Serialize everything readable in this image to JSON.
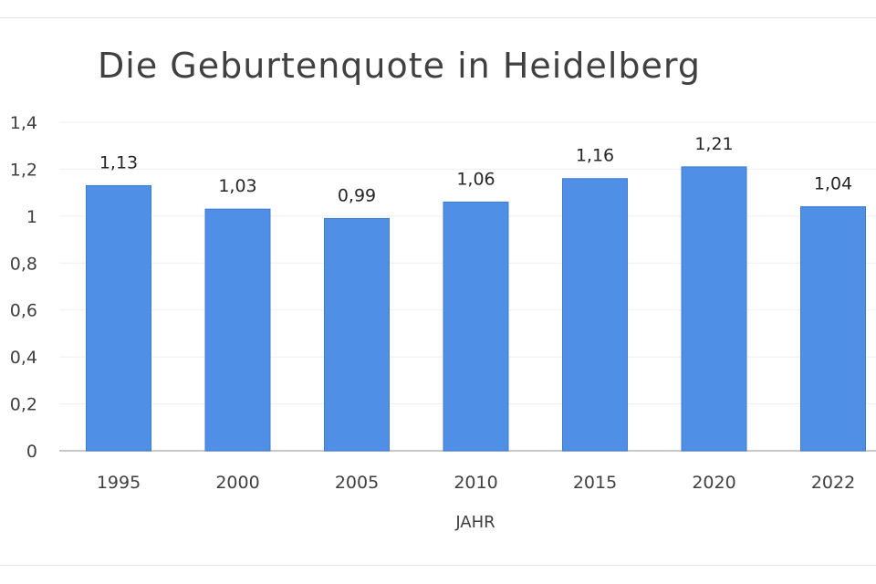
{
  "chart_data": {
    "type": "bar",
    "title": "Die Geburtenquote in Heidelberg",
    "xlabel": "JAHR",
    "ylabel": "",
    "categories": [
      "1995",
      "2000",
      "2005",
      "2010",
      "2015",
      "2020",
      "2022"
    ],
    "values": [
      1.13,
      1.03,
      0.99,
      1.06,
      1.16,
      1.21,
      1.04
    ],
    "data_labels": [
      "1,13",
      "1,03",
      "0,99",
      "1,06",
      "1,16",
      "1,21",
      "1,04"
    ],
    "ylim": [
      0,
      1.4
    ],
    "yticks": [
      0,
      0.2,
      0.4,
      0.6,
      0.8,
      1,
      1.2,
      1.4
    ],
    "ytick_labels": [
      "0",
      "0,2",
      "0,4",
      "0,6",
      "0,8",
      "1",
      "1,2",
      "1,4"
    ],
    "grid": true,
    "legend": "none",
    "colors": {
      "bar": "#4f8fe6",
      "bar_edge": "#3f7bd0",
      "grid": "#efefef",
      "axis": "#c8c8c8"
    }
  }
}
